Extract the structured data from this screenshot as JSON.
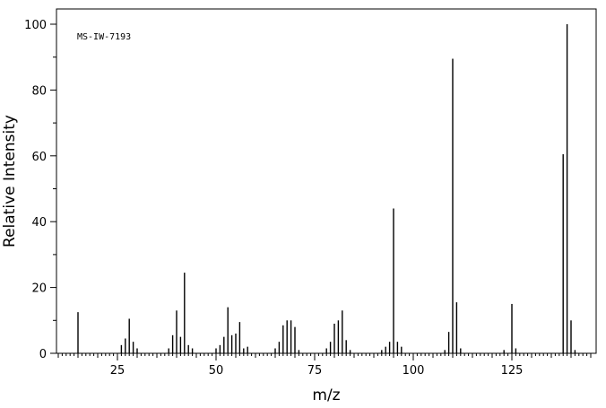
{
  "chart_data": {
    "type": "bar",
    "annotation": "MS-IW-7193",
    "xlabel": "m/z",
    "ylabel": "Relative Intensity",
    "xlim": [
      10,
      145
    ],
    "ylim": [
      0,
      100
    ],
    "x_ticks": [
      25,
      50,
      75,
      100,
      125
    ],
    "y_ticks": [
      0,
      20,
      40,
      60,
      80,
      100
    ],
    "x_minor_step": 1,
    "x_mid_step": 5,
    "y_minor_step": 10,
    "peaks": [
      {
        "x": 15,
        "y": 12.5
      },
      {
        "x": 26,
        "y": 2.5
      },
      {
        "x": 27,
        "y": 4.5
      },
      {
        "x": 28,
        "y": 10.5
      },
      {
        "x": 29,
        "y": 3.5
      },
      {
        "x": 30,
        "y": 1.5
      },
      {
        "x": 38,
        "y": 1.5
      },
      {
        "x": 39,
        "y": 5.5
      },
      {
        "x": 40,
        "y": 13.0
      },
      {
        "x": 41,
        "y": 5.0
      },
      {
        "x": 42,
        "y": 24.5
      },
      {
        "x": 43,
        "y": 2.5
      },
      {
        "x": 44,
        "y": 1.5
      },
      {
        "x": 50,
        "y": 1.5
      },
      {
        "x": 51,
        "y": 2.5
      },
      {
        "x": 52,
        "y": 5.0
      },
      {
        "x": 53,
        "y": 14.0
      },
      {
        "x": 54,
        "y": 5.5
      },
      {
        "x": 55,
        "y": 6.0
      },
      {
        "x": 56,
        "y": 9.5
      },
      {
        "x": 57,
        "y": 1.5
      },
      {
        "x": 58,
        "y": 2.0
      },
      {
        "x": 65,
        "y": 1.5
      },
      {
        "x": 66,
        "y": 3.5
      },
      {
        "x": 67,
        "y": 8.5
      },
      {
        "x": 68,
        "y": 10.0
      },
      {
        "x": 69,
        "y": 10.0
      },
      {
        "x": 70,
        "y": 8.0
      },
      {
        "x": 71,
        "y": 1.0
      },
      {
        "x": 78,
        "y": 1.5
      },
      {
        "x": 79,
        "y": 3.5
      },
      {
        "x": 80,
        "y": 9.0
      },
      {
        "x": 81,
        "y": 10.0
      },
      {
        "x": 82,
        "y": 13.0
      },
      {
        "x": 83,
        "y": 4.0
      },
      {
        "x": 84,
        "y": 1.0
      },
      {
        "x": 92,
        "y": 1.0
      },
      {
        "x": 93,
        "y": 2.0
      },
      {
        "x": 94,
        "y": 3.5
      },
      {
        "x": 95,
        "y": 44.0
      },
      {
        "x": 96,
        "y": 3.5
      },
      {
        "x": 97,
        "y": 2.0
      },
      {
        "x": 108,
        "y": 1.0
      },
      {
        "x": 109,
        "y": 6.5
      },
      {
        "x": 110,
        "y": 89.5
      },
      {
        "x": 111,
        "y": 15.5
      },
      {
        "x": 112,
        "y": 1.5
      },
      {
        "x": 123,
        "y": 1.0
      },
      {
        "x": 125,
        "y": 15.0
      },
      {
        "x": 126,
        "y": 1.5
      },
      {
        "x": 138,
        "y": 60.5
      },
      {
        "x": 139,
        "y": 100.0
      },
      {
        "x": 140,
        "y": 10.0
      },
      {
        "x": 141,
        "y": 1.0
      }
    ]
  }
}
